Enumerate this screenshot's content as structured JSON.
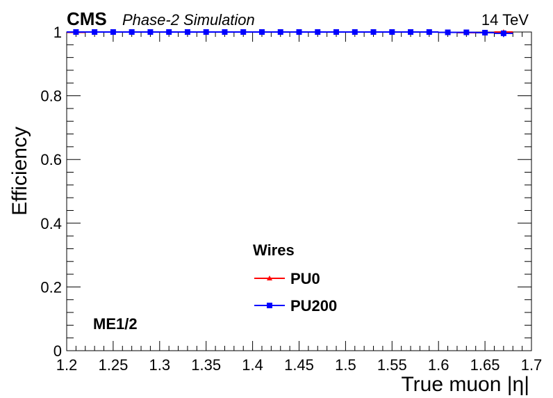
{
  "header": {
    "experiment": "CMS",
    "subtitle": "Phase-2 Simulation",
    "energy": "14 TeV"
  },
  "annotation": "ME1/2",
  "colors": {
    "pu0": "#ff0000",
    "pu200": "#0000ff"
  },
  "chart_data": {
    "type": "scatter",
    "title": "",
    "xlabel": "True muon |η|",
    "ylabel": "Efficiency",
    "xlim": [
      1.2,
      1.7
    ],
    "ylim": [
      0,
      1.0
    ],
    "x_ticks": [
      "1.2",
      "1.25",
      "1.3",
      "1.35",
      "1.4",
      "1.45",
      "1.5",
      "1.55",
      "1.6",
      "1.65",
      "1.7"
    ],
    "y_ticks": [
      "0",
      "0.2",
      "0.4",
      "0.6",
      "0.8",
      "1"
    ],
    "grid": false,
    "legend": {
      "title": "Wires",
      "position": "bottom-center"
    },
    "x": [
      1.21,
      1.23,
      1.25,
      1.27,
      1.29,
      1.31,
      1.33,
      1.35,
      1.37,
      1.39,
      1.41,
      1.43,
      1.45,
      1.47,
      1.49,
      1.51,
      1.53,
      1.55,
      1.57,
      1.59,
      1.61,
      1.63,
      1.65,
      1.67
    ],
    "series": [
      {
        "name": "PU0",
        "marker": "triangle",
        "values": [
          0.999,
          1.0,
          1.0,
          1.0,
          1.0,
          1.0,
          1.0,
          1.0,
          1.0,
          1.0,
          1.0,
          1.0,
          1.0,
          1.0,
          1.0,
          1.0,
          1.0,
          1.0,
          1.0,
          1.0,
          0.999,
          0.998,
          0.998,
          1.0
        ]
      },
      {
        "name": "PU200",
        "marker": "square",
        "values": [
          1.0,
          1.0,
          1.0,
          1.0,
          1.0,
          1.0,
          1.0,
          1.0,
          1.0,
          1.0,
          1.0,
          1.0,
          1.0,
          1.0,
          1.0,
          1.0,
          1.0,
          1.0,
          1.0,
          1.0,
          0.999,
          0.999,
          0.998,
          0.996
        ],
        "errors": [
          0.001,
          0.001,
          0.001,
          0.001,
          0.001,
          0.001,
          0.001,
          0.001,
          0.001,
          0.001,
          0.001,
          0.001,
          0.001,
          0.001,
          0.001,
          0.001,
          0.001,
          0.001,
          0.001,
          0.001,
          0.002,
          0.002,
          0.003,
          0.012
        ]
      }
    ]
  }
}
